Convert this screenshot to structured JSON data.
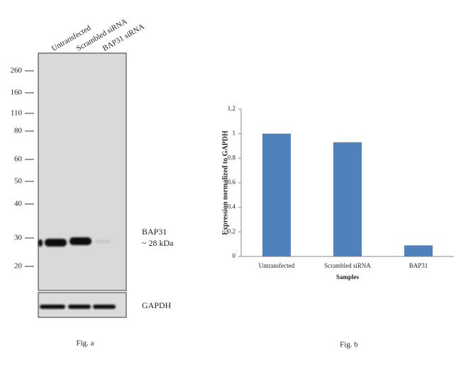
{
  "blot": {
    "lanes": [
      "Untransfected",
      "Scrambled siRNA",
      "BAP31 siRNA"
    ],
    "markers": [
      "260",
      "160",
      "110",
      "80",
      "60",
      "50",
      "40",
      "30",
      "20"
    ],
    "band_label": "BAP31",
    "band_size": "~ 28 kDa",
    "control_label": "GAPDH",
    "caption": "Fig. a"
  },
  "chart_data": {
    "type": "bar",
    "categories": [
      "Untransfected",
      "Scrambled siRNA",
      "BAP31"
    ],
    "values": [
      1,
      0.93,
      0.09
    ],
    "color": "#4f81bd",
    "ylim": [
      0,
      1.2
    ],
    "yticks": [
      0,
      0.2,
      0.4,
      0.6,
      0.8,
      1,
      1.2
    ],
    "ylabel": "Expression normalized to GAPDH",
    "xlabel": "Samples",
    "caption": "Fig. b"
  }
}
